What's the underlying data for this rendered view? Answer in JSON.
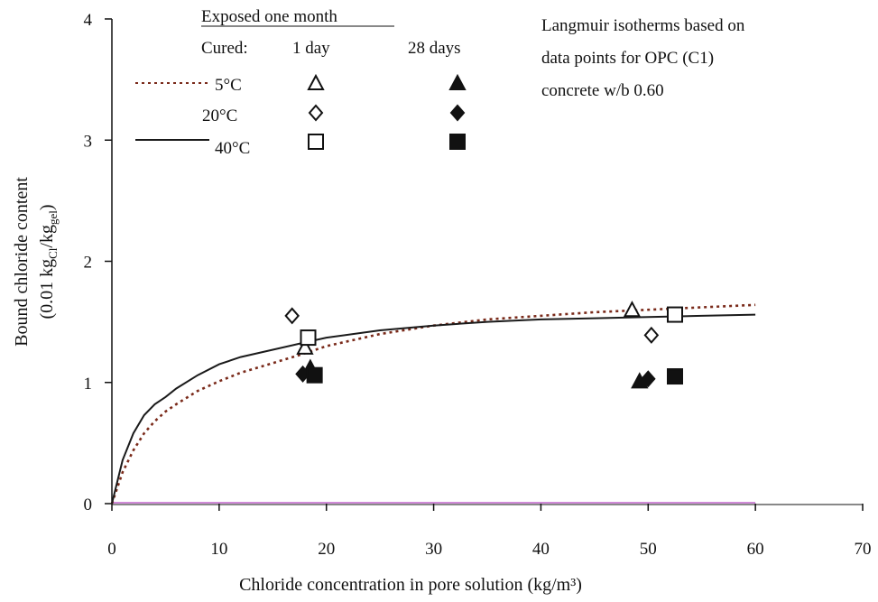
{
  "chart_data": {
    "type": "scatter",
    "title": "",
    "note_lines": [
      "Langmuir isotherms based on",
      "data points for OPC (C1)",
      "concrete w/b 0.60"
    ],
    "xlabel": "Chloride concentration in pore solution  (kg/m³)",
    "ylabel_line1": "Bound chloride content",
    "ylabel_line2_parts": [
      "(0.01 kg",
      "Cl",
      "/kg",
      "gel",
      ")"
    ],
    "xlim": [
      0,
      70
    ],
    "ylim": [
      0,
      4
    ],
    "x_ticks": [
      "0",
      "10",
      "20",
      "30",
      "40",
      "50",
      "60",
      "70"
    ],
    "y_ticks": [
      "0",
      "1",
      "2",
      "3",
      "4"
    ],
    "grid": false,
    "legend": {
      "header": "Exposed one month",
      "cured_label": "Cured:",
      "col_1day": "1 day",
      "col_28days": "28 days",
      "rows": [
        {
          "label": "5°C",
          "line": "dotted"
        },
        {
          "label": "20°C",
          "line": "none"
        },
        {
          "label": "40°C",
          "line": "solid"
        }
      ]
    },
    "curves": [
      {
        "temperature": "5°C",
        "style": "dotted",
        "color": "#7a2a1a",
        "x": [
          0,
          1,
          2,
          3,
          4,
          5,
          6,
          8,
          10,
          12,
          15,
          18,
          20,
          25,
          30,
          35,
          40,
          45,
          50,
          55,
          60
        ],
        "y": [
          0,
          0.26,
          0.44,
          0.58,
          0.68,
          0.76,
          0.82,
          0.93,
          1.01,
          1.08,
          1.16,
          1.24,
          1.3,
          1.4,
          1.47,
          1.52,
          1.55,
          1.58,
          1.6,
          1.62,
          1.64
        ]
      },
      {
        "temperature": "40°C",
        "style": "solid",
        "color": "#1a1a1a",
        "x": [
          0,
          1,
          2,
          3,
          4,
          5,
          6,
          8,
          10,
          12,
          15,
          18,
          20,
          25,
          30,
          35,
          40,
          45,
          50,
          55,
          60
        ],
        "y": [
          0,
          0.36,
          0.58,
          0.73,
          0.82,
          0.88,
          0.95,
          1.06,
          1.15,
          1.21,
          1.27,
          1.33,
          1.37,
          1.43,
          1.47,
          1.5,
          1.52,
          1.53,
          1.54,
          1.55,
          1.56
        ]
      }
    ],
    "series": [
      {
        "temperature": "5°C",
        "cured": "1 day",
        "marker": "triangle",
        "filled": false,
        "points": [
          [
            18.0,
            1.29
          ],
          [
            48.5,
            1.6
          ]
        ]
      },
      {
        "temperature": "5°C",
        "cured": "28 days",
        "marker": "triangle",
        "filled": true,
        "points": [
          [
            18.5,
            1.12
          ],
          [
            49.2,
            1.01
          ]
        ]
      },
      {
        "temperature": "20°C",
        "cured": "1 day",
        "marker": "diamond",
        "filled": false,
        "points": [
          [
            16.8,
            1.55
          ],
          [
            50.3,
            1.39
          ]
        ]
      },
      {
        "temperature": "20°C",
        "cured": "28 days",
        "marker": "diamond",
        "filled": true,
        "points": [
          [
            17.8,
            1.07
          ],
          [
            50.0,
            1.03
          ]
        ]
      },
      {
        "temperature": "40°C",
        "cured": "1 day",
        "marker": "square",
        "filled": false,
        "points": [
          [
            18.3,
            1.37
          ],
          [
            52.5,
            1.56
          ]
        ]
      },
      {
        "temperature": "40°C",
        "cured": "28 days",
        "marker": "square",
        "filled": true,
        "points": [
          [
            18.9,
            1.06
          ],
          [
            52.5,
            1.05
          ]
        ]
      }
    ],
    "colors": {
      "axis": "#111111",
      "zero_line": "#d08ad8",
      "curve_5C": "#7a2a1a",
      "curve_40C": "#1a1a1a",
      "marker": "#111111"
    }
  }
}
